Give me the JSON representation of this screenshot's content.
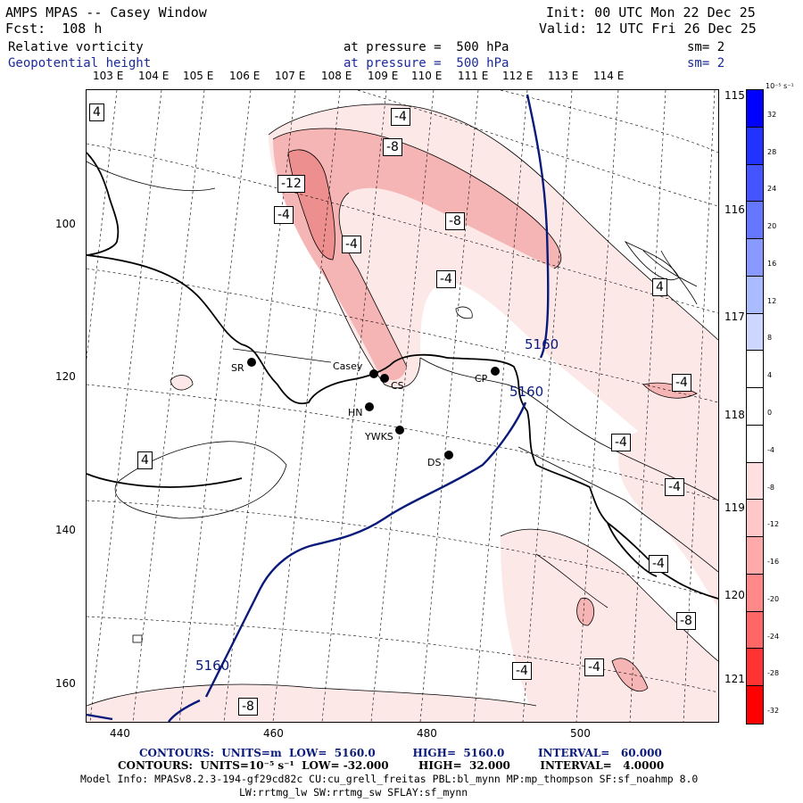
{
  "header": {
    "title": "AMPS MPAS -- Casey Window",
    "forecast": "Fcst:  108 h",
    "init": "Init: 00 UTC Mon 22 Dec 25",
    "valid": "Valid: 12 UTC Fri 26 Dec 25",
    "field1_name": "Relative vorticity",
    "field1_level": "at pressure =  500 hPa",
    "field1_sm": "sm= 2",
    "field2_name": "Geopotential height",
    "field2_level": "at pressure =  500 hPa",
    "field2_sm": "sm= 2"
  },
  "top_lon_labels": [
    "103 E",
    "104 E",
    "105 E",
    "106 E",
    "107 E",
    "108 E",
    "109 E",
    "110 E",
    "111 E",
    "112 E",
    "113 E",
    "114 E"
  ],
  "right_lon_labels": [
    "115 E",
    "116 E",
    "117 E",
    "118 E",
    "119 E",
    "120 E",
    "121 E"
  ],
  "x_ticks": [
    "440",
    "460",
    "480",
    "500"
  ],
  "y_ticks": [
    "100",
    "120",
    "140",
    "160"
  ],
  "stations": [
    {
      "id": "SR",
      "label": "SR"
    },
    {
      "id": "Casey",
      "label": "Casey"
    },
    {
      "id": "CS",
      "label": "CS"
    },
    {
      "id": "HN",
      "label": "HN"
    },
    {
      "id": "YWKS",
      "label": "YWKS"
    },
    {
      "id": "DS",
      "label": "DS"
    },
    {
      "id": "CP",
      "label": "CP"
    }
  ],
  "contour_labels": {
    "vort": [
      "4",
      "-4",
      "-8",
      "-12",
      "-4",
      "-4",
      "-8",
      "-4",
      "4",
      "-4",
      "4",
      "-4",
      "-4",
      "-4",
      "-8",
      "-4",
      "-4",
      "-8"
    ],
    "height": [
      "5160",
      "5160",
      "5160"
    ]
  },
  "colorbar": {
    "unit": "10⁻⁵ s⁻¹",
    "ticks": [
      "32",
      "28",
      "24",
      "20",
      "16",
      "12",
      "8",
      "4",
      "0",
      "-4",
      "-8",
      "-12",
      "-16",
      "-20",
      "-24",
      "-28",
      "-32"
    ],
    "colors": [
      "#0000ff",
      "#2233ff",
      "#4455ff",
      "#6677ff",
      "#8899ff",
      "#aabbff",
      "#ccd6ff",
      "#ffffff",
      "#ffffff",
      "#ffffff",
      "#ffe0e0",
      "#ffc8c8",
      "#ffaaaa",
      "#ff8888",
      "#ff6666",
      "#ff3333",
      "#ff0000"
    ]
  },
  "footer": {
    "line1": "CONTOURS:  UNITS=m  LOW=  5160.0          HIGH=  5160.0         INTERVAL=   60.000",
    "line2": "CONTOURS:  UNITS=10⁻⁵ s⁻¹  LOW= -32.000        HIGH=  32.000        INTERVAL=   4.0000",
    "line3": "Model Info: MPASv8.2.3-194-gf29cd82c CU:cu_grell_freitas PBL:bl_mynn MP:mp_thompson SF:sf_noahmp 8.0",
    "line4": "LW:rrtmg_lw SW:rrtmg_sw SFLAY:sf_mynn"
  }
}
